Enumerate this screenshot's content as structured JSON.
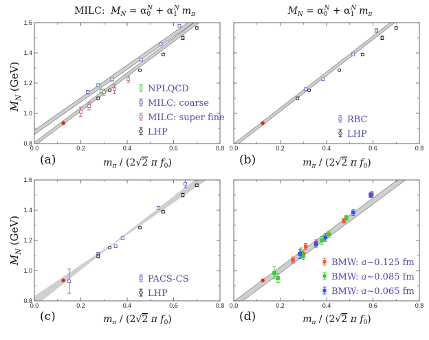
{
  "colors": {
    "band": "#cfcfcf",
    "band_line": "#8a8a8a",
    "milc_coarse": "#6a6ad2",
    "milc_fine": "#b86a86",
    "npl": "#33cc33",
    "lhp": "#222222",
    "rbc": "#6a6ad2",
    "pacs": "#6a6ad2",
    "bmw_a": "#ff5533",
    "bmw_b": "#33cc33",
    "bmw_c": "#3355ee",
    "phys": "#ee2211",
    "legend_text": "#4a4aa8"
  },
  "figure": {
    "title_left_prefix": "MILC:",
    "title_formula_lhs": "M",
    "title_formula_lhs_sub": "N",
    "title_formula_eq": " = α",
    "title_sub0": "0",
    "title_sup": "N",
    "title_plus": " + α",
    "title_sub1": "1",
    "title_mpi": "m",
    "title_mpi_sub": "π",
    "ylabel_M": "M",
    "ylabel_sub": "N",
    "ylabel_unit": " (GeV)",
    "xlabel_m": "m",
    "xlabel_pi": "π",
    "xlabel_mid": " / (2",
    "xlabel_root": "√",
    "xlabel_two": "2",
    "xlabel_pi2": " π ",
    "xlabel_f": "f",
    "xlabel_f_sub": "0",
    "xlabel_close": ")"
  },
  "chart_data": [
    {
      "type": "scatter",
      "panel_label": "(a)",
      "title": "MILC: M_N = α0^N + α1^N m_π",
      "xlabel": "m_π / (2√2 π f0)",
      "ylabel": "M_N (GeV)",
      "xlim": [
        0.0,
        0.8
      ],
      "ylim": [
        0.8,
        1.6
      ],
      "xticks": [
        "0.0",
        "0.2",
        "0.4",
        "0.6",
        "0.8"
      ],
      "yticks": [
        "0.8",
        "1.0",
        "1.2",
        "1.4",
        "1.6"
      ],
      "fit_bands": [
        {
          "x": [
            0.0,
            0.8
          ],
          "y_center": [
            0.874,
            1.736
          ],
          "half_width": 0.014
        },
        {
          "x": [
            0.0,
            0.8
          ],
          "y_center": [
            0.796,
            1.716
          ],
          "half_width": 0.012
        }
      ],
      "physical_point": {
        "x": 0.125,
        "y": 0.935
      },
      "series": [
        {
          "name": "NPLQCD",
          "color": "npl",
          "marker": "circle-open",
          "points": [
            {
              "x": 0.288,
              "y": 1.148,
              "err": 0.012
            }
          ]
        },
        {
          "name": "MILC: coarse",
          "color": "milc_coarse",
          "marker": "square-open",
          "points": [
            {
              "x": 0.23,
              "y": 1.14,
              "err": 0.012
            },
            {
              "x": 0.275,
              "y": 1.186,
              "err": 0.01
            },
            {
              "x": 0.335,
              "y": 1.224,
              "err": 0.01
            },
            {
              "x": 0.46,
              "y": 1.355,
              "err": 0.008
            },
            {
              "x": 0.545,
              "y": 1.46,
              "err": 0.008
            },
            {
              "x": 0.625,
              "y": 1.58,
              "err": 0.008
            }
          ]
        },
        {
          "name": "MILC: super fine",
          "color": "milc_fine",
          "marker": "square-open",
          "points": [
            {
              "x": 0.2,
              "y": 1.01,
              "err": 0.03
            },
            {
              "x": 0.235,
              "y": 1.048,
              "err": 0.025
            },
            {
              "x": 0.3,
              "y": 1.14,
              "err": 0.02
            },
            {
              "x": 0.345,
              "y": 1.16,
              "err": 0.03
            },
            {
              "x": 0.405,
              "y": 1.225,
              "err": 0.02
            }
          ]
        },
        {
          "name": "LHP",
          "color": "lhp",
          "marker": "circle-open",
          "points": [
            {
              "x": 0.275,
              "y": 1.1,
              "err": 0.008
            },
            {
              "x": 0.325,
              "y": 1.152,
              "err": 0.005
            },
            {
              "x": 0.455,
              "y": 1.285,
              "err": 0.006
            },
            {
              "x": 0.555,
              "y": 1.39,
              "err": 0.008
            },
            {
              "x": 0.64,
              "y": 1.5,
              "err": 0.012
            },
            {
              "x": 0.7,
              "y": 1.565,
              "err": 0.008
            }
          ]
        }
      ],
      "legend": [
        {
          "label": "NPLQCD",
          "color": "npl"
        },
        {
          "label": "MILC: coarse",
          "color": "milc_coarse"
        },
        {
          "label": "MILC: super fine",
          "color": "milc_fine"
        },
        {
          "label": "LHP",
          "color": "lhp"
        }
      ]
    },
    {
      "type": "scatter",
      "panel_label": "(b)",
      "title": "M_N = α0^N + α1^N m_π",
      "xlabel": "m_π / (2√2 π f0)",
      "ylabel": "",
      "xlim": [
        0.0,
        0.8
      ],
      "ylim": [
        0.8,
        1.6
      ],
      "xticks": [
        "0.0",
        "0.2",
        "0.4",
        "0.6",
        "0.8"
      ],
      "yticks": [],
      "fit_bands": [
        {
          "x": [
            0.0,
            0.8
          ],
          "y_center": [
            0.786,
            1.738
          ],
          "half_width": 0.012
        }
      ],
      "physical_point": {
        "x": 0.125,
        "y": 0.935
      },
      "series": [
        {
          "name": "RBC",
          "color": "rbc",
          "marker": "square-open",
          "points": [
            {
              "x": 0.31,
              "y": 1.16,
              "err": 0.008
            },
            {
              "x": 0.385,
              "y": 1.225,
              "err": 0.008
            },
            {
              "x": 0.515,
              "y": 1.39,
              "err": 0.008
            },
            {
              "x": 0.615,
              "y": 1.548,
              "err": 0.012
            }
          ]
        },
        {
          "name": "LHP",
          "color": "lhp",
          "marker": "circle-open",
          "points": [
            {
              "x": 0.275,
              "y": 1.1,
              "err": 0.008
            },
            {
              "x": 0.325,
              "y": 1.152,
              "err": 0.005
            },
            {
              "x": 0.455,
              "y": 1.285,
              "err": 0.006
            },
            {
              "x": 0.555,
              "y": 1.39,
              "err": 0.008
            },
            {
              "x": 0.64,
              "y": 1.5,
              "err": 0.012
            },
            {
              "x": 0.7,
              "y": 1.565,
              "err": 0.008
            }
          ]
        }
      ],
      "legend": [
        {
          "label": "RBC",
          "color": "rbc"
        },
        {
          "label": "LHP",
          "color": "lhp"
        }
      ]
    },
    {
      "type": "scatter",
      "panel_label": "(c)",
      "title": "",
      "xlabel": "m_π / (2√2 π f0)",
      "ylabel": "M_N (GeV)",
      "xlim": [
        0.0,
        0.8
      ],
      "ylim": [
        0.8,
        1.6
      ],
      "xticks": [
        "0.0",
        "0.2",
        "0.4",
        "0.6",
        "0.8"
      ],
      "yticks": [
        "0.8",
        "1.0",
        "1.2",
        "1.4",
        "1.6"
      ],
      "fit_bands": [
        {
          "x": [
            0.0,
            0.8
          ],
          "y_center": [
            0.796,
            1.696
          ],
          "half_width": 0.035,
          "pinch_x": 0.34,
          "pinch_width": 0.004
        }
      ],
      "physical_point": {
        "x": 0.125,
        "y": 0.935
      },
      "series": [
        {
          "name": "PACS-CS",
          "color": "pacs",
          "marker": "square-open",
          "points": [
            {
              "x": 0.15,
              "y": 0.93,
              "err": 0.08
            },
            {
              "x": 0.275,
              "y": 1.105,
              "err": 0.015
            },
            {
              "x": 0.35,
              "y": 1.162,
              "err": 0.01
            },
            {
              "x": 0.38,
              "y": 1.215,
              "err": 0.008
            },
            {
              "x": 0.535,
              "y": 1.415,
              "err": 0.01
            },
            {
              "x": 0.65,
              "y": 1.575,
              "err": 0.025
            }
          ]
        },
        {
          "name": "LHP",
          "color": "lhp",
          "marker": "circle-open",
          "points": [
            {
              "x": 0.275,
              "y": 1.095,
              "err": 0.01
            },
            {
              "x": 0.325,
              "y": 1.152,
              "err": 0.005
            },
            {
              "x": 0.455,
              "y": 1.285,
              "err": 0.006
            },
            {
              "x": 0.555,
              "y": 1.39,
              "err": 0.008
            },
            {
              "x": 0.64,
              "y": 1.5,
              "err": 0.012
            },
            {
              "x": 0.7,
              "y": 1.565,
              "err": 0.008
            }
          ]
        }
      ],
      "legend": [
        {
          "label": "PACS-CS",
          "color": "pacs"
        },
        {
          "label": "LHP",
          "color": "lhp"
        }
      ]
    },
    {
      "type": "scatter",
      "panel_label": "(d)",
      "title": "",
      "xlabel": "m_π / (2√2 π f0)",
      "ylabel": "",
      "xlim": [
        0.0,
        0.8
      ],
      "ylim": [
        0.8,
        1.6
      ],
      "xticks": [
        "0.0",
        "0.2",
        "0.4",
        "0.6",
        "0.8"
      ],
      "yticks": [],
      "fit_bands": [
        {
          "x": [
            0.0,
            0.8
          ],
          "y_center": [
            0.776,
            1.688
          ],
          "half_width": 0.02
        }
      ],
      "physical_point": {
        "x": 0.125,
        "y": 0.935
      },
      "series": [
        {
          "name": "BMW: a~0.125 fm",
          "color": "bmw_a",
          "marker": "square",
          "points": [
            {
              "x": 0.255,
              "y": 1.07,
              "err": 0.02
            },
            {
              "x": 0.3,
              "y": 1.11,
              "err": 0.02
            },
            {
              "x": 0.31,
              "y": 1.16,
              "err": 0.02
            },
            {
              "x": 0.355,
              "y": 1.18,
              "err": 0.025
            },
            {
              "x": 0.475,
              "y": 1.33,
              "err": 0.015
            },
            {
              "x": 0.595,
              "y": 1.505,
              "err": 0.02
            }
          ]
        },
        {
          "name": "BMW: a~0.085 fm",
          "color": "bmw_b",
          "marker": "square",
          "points": [
            {
              "x": 0.175,
              "y": 0.985,
              "err": 0.04
            },
            {
              "x": 0.19,
              "y": 0.95,
              "err": 0.03
            },
            {
              "x": 0.29,
              "y": 1.12,
              "err": 0.03
            },
            {
              "x": 0.3,
              "y": 1.095,
              "err": 0.02
            },
            {
              "x": 0.38,
              "y": 1.2,
              "err": 0.025
            },
            {
              "x": 0.41,
              "y": 1.24,
              "err": 0.02
            },
            {
              "x": 0.485,
              "y": 1.35,
              "err": 0.015
            }
          ]
        },
        {
          "name": "BMW: a~0.065 fm",
          "color": "bmw_c",
          "marker": "square",
          "points": [
            {
              "x": 0.285,
              "y": 1.11,
              "err": 0.03
            },
            {
              "x": 0.355,
              "y": 1.175,
              "err": 0.02
            },
            {
              "x": 0.395,
              "y": 1.22,
              "err": 0.025
            },
            {
              "x": 0.515,
              "y": 1.385,
              "err": 0.02
            },
            {
              "x": 0.59,
              "y": 1.5,
              "err": 0.015
            }
          ]
        }
      ],
      "legend": [
        {
          "label_prefix": "BMW: ",
          "label_a": "a",
          "label_rest": "~0.125 fm",
          "color": "bmw_a"
        },
        {
          "label_prefix": "BMW: ",
          "label_a": "a",
          "label_rest": "~0.085 fm",
          "color": "bmw_b"
        },
        {
          "label_prefix": "BMW: ",
          "label_a": "a",
          "label_rest": "~0.065 fm",
          "color": "bmw_c"
        }
      ]
    }
  ]
}
